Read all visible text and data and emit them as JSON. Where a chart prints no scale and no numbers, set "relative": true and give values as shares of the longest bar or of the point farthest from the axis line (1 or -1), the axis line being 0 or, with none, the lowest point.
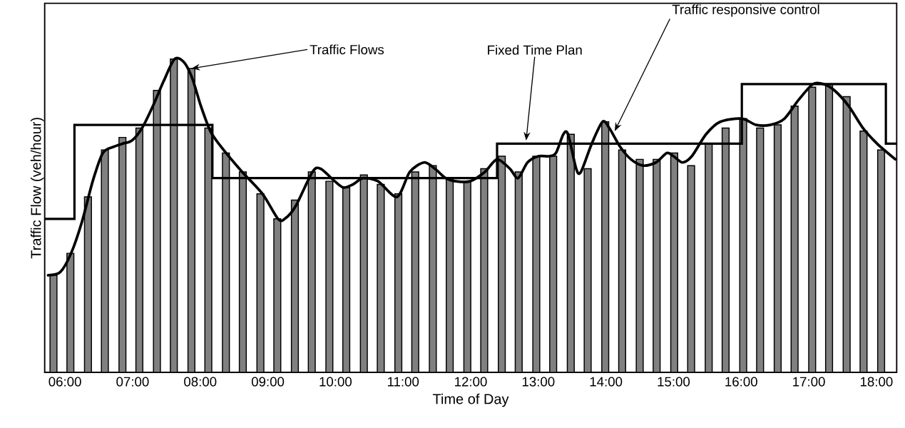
{
  "chart_data": {
    "type": "bar",
    "relative": true,
    "xlabel": "Time of Day",
    "ylabel": "Traffic Flow (veh/hour)",
    "xlim": [
      5.7,
      18.3
    ],
    "xticks": [
      {
        "value": 6,
        "label": "06:00"
      },
      {
        "value": 7,
        "label": "07:00"
      },
      {
        "value": 8,
        "label": "08:00"
      },
      {
        "value": 9,
        "label": "09:00"
      },
      {
        "value": 10,
        "label": "10:00"
      },
      {
        "value": 11,
        "label": "11:00"
      },
      {
        "value": 12,
        "label": "12:00"
      },
      {
        "value": 13,
        "label": "13:00"
      },
      {
        "value": 14,
        "label": "14:00"
      },
      {
        "value": 15,
        "label": "15:00"
      },
      {
        "value": 16,
        "label": "16:00"
      },
      {
        "value": 17,
        "label": "17:00"
      },
      {
        "value": 18,
        "label": "18:00"
      }
    ],
    "series": [
      {
        "color": "#808080",
        "x": [
          5.83,
          6.08,
          6.34,
          6.59,
          6.85,
          7.1,
          7.36,
          7.61,
          7.87,
          8.12,
          8.38,
          8.63,
          8.89,
          9.14,
          9.4,
          9.65,
          9.91,
          10.16,
          10.42,
          10.67,
          10.93,
          11.18,
          11.44,
          11.69,
          11.95,
          12.2,
          12.46,
          12.71,
          12.97,
          13.22,
          13.48,
          13.73,
          13.99,
          14.24,
          14.5,
          14.75,
          15.01,
          15.26,
          15.52,
          15.77,
          16.03,
          16.28,
          16.54,
          16.79,
          17.05,
          17.3,
          17.56,
          17.81,
          18.07
        ],
        "values": [
          0.31,
          0.38,
          0.56,
          0.71,
          0.75,
          0.78,
          0.9,
          1.0,
          0.97,
          0.78,
          0.7,
          0.64,
          0.57,
          0.49,
          0.55,
          0.64,
          0.61,
          0.59,
          0.63,
          0.6,
          0.57,
          0.64,
          0.66,
          0.62,
          0.61,
          0.65,
          0.69,
          0.64,
          0.69,
          0.69,
          0.76,
          0.65,
          0.8,
          0.71,
          0.68,
          0.68,
          0.7,
          0.66,
          0.73,
          0.78,
          0.81,
          0.78,
          0.79,
          0.85,
          0.91,
          0.92,
          0.88,
          0.77,
          0.71
        ]
      },
      {
        "type": "line",
        "color": "#000000",
        "x": [
          5.75,
          5.93,
          6.09,
          6.25,
          6.41,
          6.56,
          6.72,
          6.85,
          6.99,
          7.14,
          7.3,
          7.46,
          7.62,
          7.76,
          7.88,
          8.01,
          8.15,
          8.31,
          8.62,
          8.92,
          9.15,
          9.25,
          9.41,
          9.66,
          9.78,
          9.99,
          10.12,
          10.26,
          10.41,
          10.63,
          10.91,
          11.1,
          11.31,
          11.47,
          11.63,
          11.78,
          11.99,
          12.21,
          12.39,
          12.58,
          12.7,
          12.84,
          13.0,
          13.16,
          13.26,
          13.37,
          13.44,
          13.56,
          13.63,
          13.79,
          13.95,
          14.05,
          14.21,
          14.37,
          14.55,
          14.74,
          14.9,
          15.0,
          15.13,
          15.27,
          15.48,
          15.69,
          16.01,
          16.22,
          16.43,
          16.64,
          16.85,
          17.06,
          17.22,
          17.38,
          17.59,
          17.8,
          18.01,
          18.28
        ],
        "values": [
          0.31,
          0.32,
          0.38,
          0.48,
          0.61,
          0.7,
          0.72,
          0.73,
          0.74,
          0.78,
          0.85,
          0.93,
          1.0,
          0.99,
          0.94,
          0.85,
          0.77,
          0.72,
          0.64,
          0.57,
          0.49,
          0.49,
          0.53,
          0.64,
          0.65,
          0.61,
          0.59,
          0.6,
          0.62,
          0.61,
          0.56,
          0.64,
          0.67,
          0.65,
          0.62,
          0.61,
          0.61,
          0.64,
          0.68,
          0.65,
          0.62,
          0.67,
          0.69,
          0.69,
          0.7,
          0.76,
          0.76,
          0.65,
          0.64,
          0.73,
          0.8,
          0.78,
          0.72,
          0.68,
          0.66,
          0.67,
          0.7,
          0.69,
          0.67,
          0.69,
          0.76,
          0.8,
          0.81,
          0.79,
          0.79,
          0.81,
          0.87,
          0.92,
          0.92,
          0.9,
          0.85,
          0.78,
          0.73,
          0.68
        ]
      },
      {
        "type": "step",
        "color": "#000000",
        "x": [
          5.7,
          6.14,
          8.18,
          12.39,
          16.01,
          18.14,
          18.3
        ],
        "values": [
          0.49,
          0.79,
          0.62,
          0.73,
          0.92,
          0.73,
          0.73
        ]
      }
    ],
    "annotations": [
      {
        "text": "Traffic Flows",
        "x": 7.87,
        "y": 0.97
      },
      {
        "text": "Fixed Time Plan",
        "x": 12.82,
        "y": 0.74
      },
      {
        "text": "Traffic responsive control",
        "x": 14.13,
        "y": 0.77
      }
    ]
  }
}
